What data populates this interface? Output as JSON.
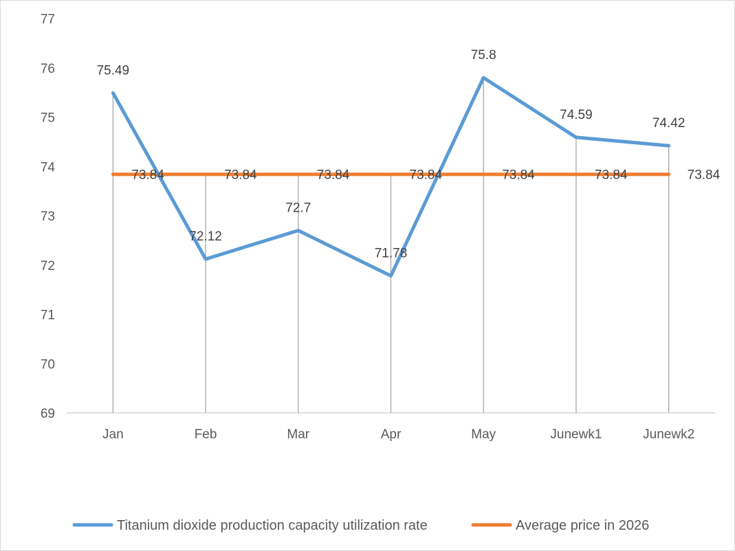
{
  "chart_data": {
    "type": "line",
    "categories": [
      "Jan",
      "Feb",
      "Mar",
      "Apr",
      "May",
      "Junewk1",
      "Junewk2"
    ],
    "series": [
      {
        "name": "Titanium dioxide production capacity utilization rate",
        "values": [
          75.49,
          72.12,
          72.7,
          71.78,
          75.8,
          74.59,
          74.42
        ],
        "labels": [
          "75.49",
          "72.12",
          "72.7",
          "71.78",
          "75.8",
          "74.59",
          "74.42"
        ],
        "color": "#5b9bd5"
      },
      {
        "name": "Average price in 2026",
        "values": [
          73.84,
          73.84,
          73.84,
          73.84,
          73.84,
          73.84,
          73.84
        ],
        "labels": [
          "73.84",
          "73.84",
          "73.84",
          "73.84",
          "73.84",
          "73.84",
          "73.84"
        ],
        "color": "#ed7d31"
      }
    ],
    "y_ticks": [
      "69",
      "70",
      "71",
      "72",
      "73",
      "74",
      "75",
      "76",
      "77"
    ],
    "ylim": [
      69,
      77
    ],
    "title": "",
    "xlabel": "",
    "ylabel": "",
    "drop_lines": true,
    "grid": false,
    "legend_position": "bottom"
  }
}
